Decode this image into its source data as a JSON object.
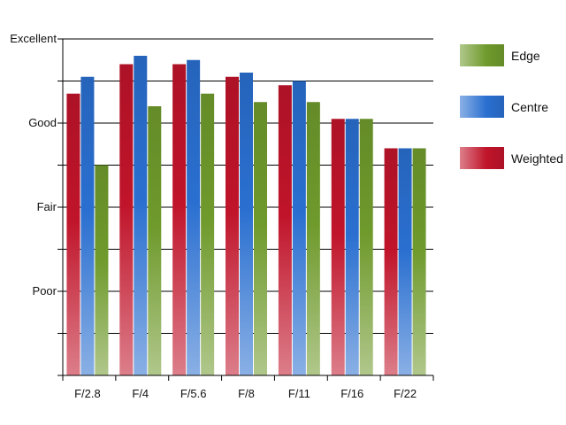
{
  "chart_data": {
    "type": "bar",
    "categories": [
      "F/2.8",
      "F/4",
      "F/5.6",
      "F/8",
      "F/11",
      "F/16",
      "F/22"
    ],
    "y_tick_labels": [
      "Poor",
      "Fair",
      "Good",
      "Excellent"
    ],
    "y_tick_values": [
      2,
      4,
      6,
      8
    ],
    "ylim": [
      0,
      8
    ],
    "grid": true,
    "legend_position": "right",
    "series": [
      {
        "name": "Weighted",
        "color": "#c0142a",
        "values": [
          6.7,
          7.4,
          7.4,
          7.1,
          6.9,
          6.1,
          5.4
        ]
      },
      {
        "name": "Centre",
        "color": "#2a6fd0",
        "values": [
          7.1,
          7.6,
          7.5,
          7.2,
          7.0,
          6.1,
          5.4
        ]
      },
      {
        "name": "Edge",
        "color": "#6f9a2c",
        "values": [
          5.0,
          6.4,
          6.7,
          6.5,
          6.5,
          6.1,
          5.4
        ]
      }
    ],
    "legend_order": [
      "Edge",
      "Centre",
      "Weighted"
    ]
  }
}
